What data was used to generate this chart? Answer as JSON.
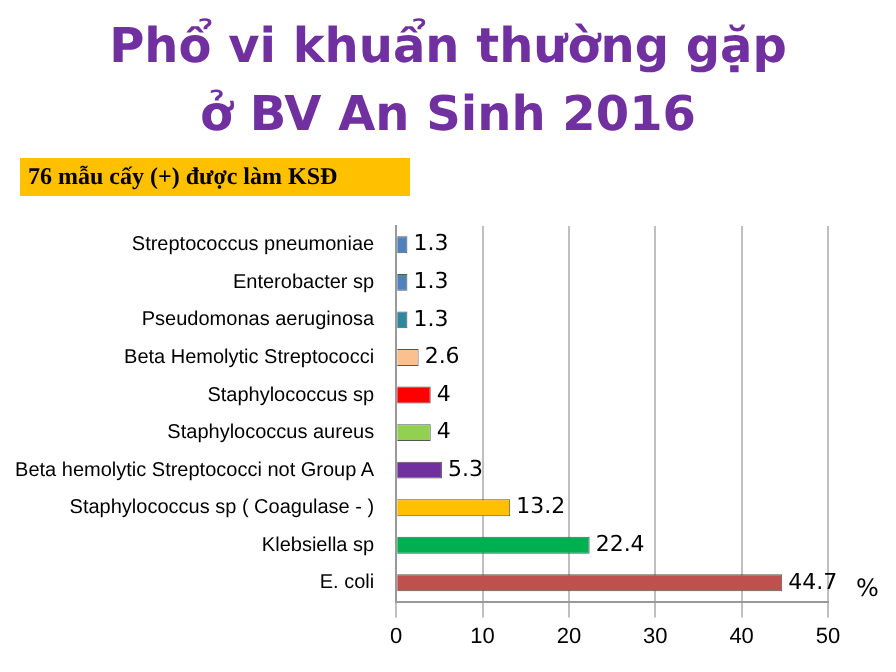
{
  "chart_data": {
    "type": "bar",
    "orientation": "horizontal",
    "title": "Phổ vi khuẩn thường gặp ở BV An Sinh 2016",
    "subtitle": "76 mẫu cấy (+) được làm KSĐ",
    "xlabel": "%",
    "categories": [
      "Streptococcus pneumoniae",
      "Enterobacter sp",
      "Pseudomonas aeruginosa",
      "Beta Hemolytic Streptococci",
      "Staphylococcus sp",
      "Staphylococcus aureus",
      "Beta hemolytic Streptococci not Group A",
      "Staphylococcus sp ( Coagulase - )",
      "Klebsiella sp",
      "E. coli"
    ],
    "values": [
      1.3,
      1.3,
      1.3,
      2.6,
      4,
      4,
      5.3,
      13.2,
      22.4,
      44.7
    ],
    "colors": [
      "#4f81bd",
      "#4f81bd",
      "#31859c",
      "#fac090",
      "#ff0000",
      "#92d050",
      "#7030a0",
      "#ffc000",
      "#00b050",
      "#c0504d"
    ],
    "xlim": [
      0,
      50
    ],
    "xticks": [
      0,
      10,
      20,
      30,
      40,
      50
    ],
    "grid": "x",
    "data_labels": true,
    "legend": false
  }
}
